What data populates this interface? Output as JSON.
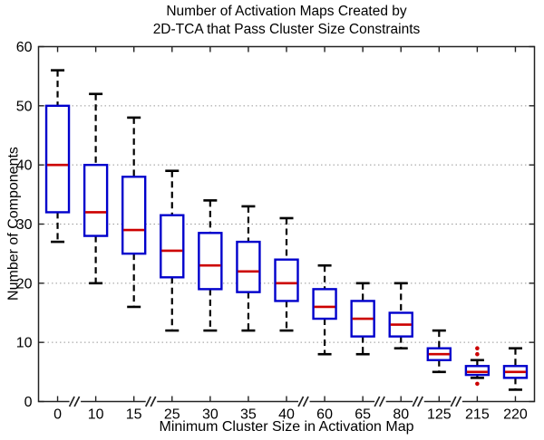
{
  "chart_data": {
    "type": "boxplot",
    "title": "Number of Activation Maps Created by 2D-TCA that Pass Cluster Size Constraints",
    "title_lines": [
      "Number of Activation Maps Created by",
      "2D-TCA that Pass Cluster Size Constraints"
    ],
    "xlabel": "Minimum Cluster Size in Activation Map",
    "ylabel": "Number of Components",
    "ylim": [
      0,
      60
    ],
    "yticks": [
      0,
      10,
      20,
      30,
      40,
      50,
      60
    ],
    "grid": "horizontal dotted gridlines at 10,20,30,40,50",
    "legend_position": "none",
    "categories": [
      "0",
      "10",
      "15",
      "25",
      "30",
      "35",
      "40",
      "60",
      "65",
      "80",
      "125",
      "215",
      "220"
    ],
    "axis_breaks_between": [
      [
        "0",
        "10"
      ],
      [
        "15",
        "25"
      ],
      [
        "40",
        "60"
      ],
      [
        "65",
        "80"
      ],
      [
        "80",
        "125"
      ],
      [
        "125",
        "215"
      ]
    ],
    "series": [
      {
        "category": "0",
        "whisker_low": 27,
        "q1": 32,
        "median": 40,
        "q3": 50,
        "whisker_high": 56,
        "outliers": []
      },
      {
        "category": "10",
        "whisker_low": 20,
        "q1": 28,
        "median": 32,
        "q3": 40,
        "whisker_high": 52,
        "outliers": []
      },
      {
        "category": "15",
        "whisker_low": 16,
        "q1": 25,
        "median": 29,
        "q3": 38,
        "whisker_high": 48,
        "outliers": []
      },
      {
        "category": "25",
        "whisker_low": 12,
        "q1": 21,
        "median": 25.5,
        "q3": 31.5,
        "whisker_high": 39,
        "outliers": []
      },
      {
        "category": "30",
        "whisker_low": 12,
        "q1": 19,
        "median": 23,
        "q3": 28.5,
        "whisker_high": 34,
        "outliers": []
      },
      {
        "category": "35",
        "whisker_low": 12,
        "q1": 18.5,
        "median": 22,
        "q3": 27,
        "whisker_high": 33,
        "outliers": []
      },
      {
        "category": "40",
        "whisker_low": 12,
        "q1": 17,
        "median": 20,
        "q3": 24,
        "whisker_high": 31,
        "outliers": []
      },
      {
        "category": "60",
        "whisker_low": 8,
        "q1": 14,
        "median": 16,
        "q3": 19,
        "whisker_high": 23,
        "outliers": []
      },
      {
        "category": "65",
        "whisker_low": 8,
        "q1": 11,
        "median": 14,
        "q3": 17,
        "whisker_high": 20,
        "outliers": []
      },
      {
        "category": "80",
        "whisker_low": 9,
        "q1": 11,
        "median": 13,
        "q3": 15,
        "whisker_high": 20,
        "outliers": []
      },
      {
        "category": "125",
        "whisker_low": 5,
        "q1": 7,
        "median": 8,
        "q3": 9,
        "whisker_high": 12,
        "outliers": []
      },
      {
        "category": "215",
        "whisker_low": 4,
        "q1": 4.5,
        "median": 5,
        "q3": 6,
        "whisker_high": 7,
        "outliers": [
          9,
          8,
          3
        ]
      },
      {
        "category": "220",
        "whisker_low": 2,
        "q1": 4,
        "median": 5,
        "q3": 6,
        "whisker_high": 9,
        "outliers": []
      }
    ],
    "colors": {
      "box": "#0000CC",
      "median": "#CC0000",
      "outlier": "#CC0000",
      "whisker": "#000000",
      "grid": "#999999",
      "axis": "#222222",
      "background": "#FFFFFF"
    }
  }
}
